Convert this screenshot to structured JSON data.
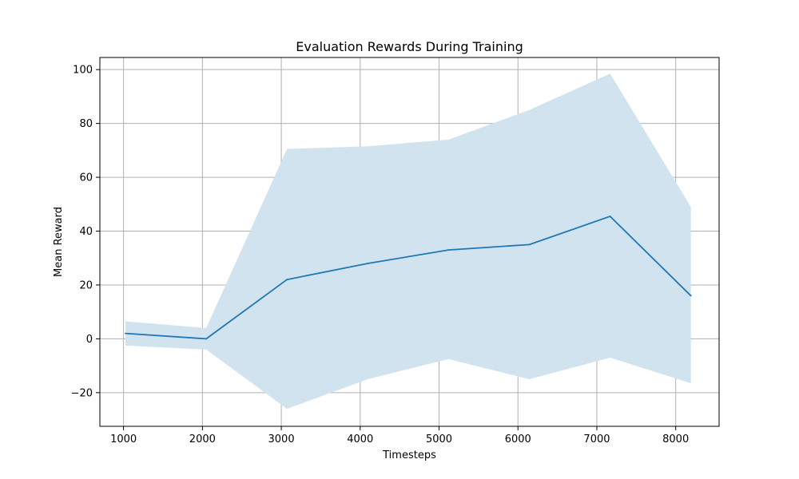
{
  "chart_data": {
    "type": "line",
    "title": "Evaluation Rewards During Training",
    "xlabel": "Timesteps",
    "ylabel": "Mean Reward",
    "xlim": [
      700,
      8550
    ],
    "ylim": [
      -32.5,
      104.5
    ],
    "xticks": [
      1000,
      2000,
      3000,
      4000,
      5000,
      6000,
      7000,
      8000
    ],
    "yticks": [
      -20,
      0,
      20,
      40,
      60,
      80,
      100
    ],
    "ytick_labels": [
      "−20",
      "0",
      "20",
      "40",
      "60",
      "80",
      "100"
    ],
    "grid": true,
    "series": [
      {
        "x": [
          1024,
          2048,
          3072,
          4096,
          5120,
          6144,
          7168,
          8192
        ],
        "y": [
          2,
          0,
          22,
          28,
          33,
          35,
          45.5,
          16
        ],
        "band_upper": [
          6.5,
          4,
          70.5,
          71.5,
          74,
          85,
          98.5,
          49
        ],
        "band_lower": [
          -2.5,
          -4,
          -26,
          -15,
          -7.5,
          -15,
          -7,
          -16.5
        ],
        "color": "#1f77b4",
        "band_color": "#d2e3f0"
      }
    ]
  }
}
